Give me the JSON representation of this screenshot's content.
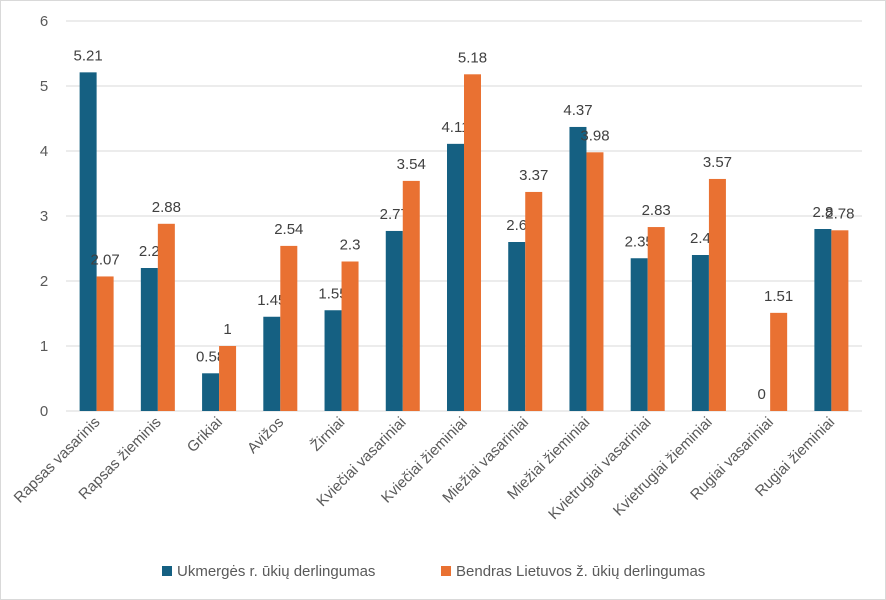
{
  "chart_data": {
    "type": "bar",
    "categories": [
      "Rapsas vasarinis",
      "Rapsas žieminis",
      "Grikiai",
      "Avižos",
      "Žirniai",
      "Kviečiai vasariniai",
      "Kviečiai žieminiai",
      "Miežiai vasariniai",
      "Miežiai žieminiai",
      "Kvietrugiai vasariniai",
      "Kvietrugiai žieminiai",
      "Rugiai vasariniai",
      "Rugiai žieminiai"
    ],
    "series": [
      {
        "name": "Ukmergės r. ūkių derlingumas",
        "color": "#156082",
        "values": [
          5.21,
          2.2,
          0.58,
          1.45,
          1.55,
          2.77,
          4.11,
          2.6,
          4.37,
          2.35,
          2.4,
          0,
          2.8
        ],
        "labels": [
          "5.21",
          "2.2",
          "0.58",
          "1.45",
          "1.55",
          "2.77",
          "4.11",
          "2.6",
          "4.37",
          "2.35",
          "2.4",
          "0",
          "2.8"
        ]
      },
      {
        "name": "Bendras Lietuvos ž. ūkių derlingumas",
        "color": "#E97132",
        "values": [
          2.07,
          2.88,
          1,
          2.54,
          2.3,
          3.54,
          5.18,
          3.37,
          3.98,
          2.83,
          3.57,
          1.51,
          2.78
        ],
        "labels": [
          "2.07",
          "2.88",
          "1",
          "2.54",
          "2.3",
          "3.54",
          "5.18",
          "3.37",
          "3.98",
          "2.83",
          "3.57",
          "1.51",
          "2.78"
        ]
      }
    ],
    "yticks": [
      "0",
      "1",
      "2",
      "3",
      "4",
      "5",
      "6"
    ],
    "ylim": [
      0,
      6
    ],
    "grid": true,
    "legend": "bottom",
    "xlabel": "",
    "ylabel": ""
  }
}
